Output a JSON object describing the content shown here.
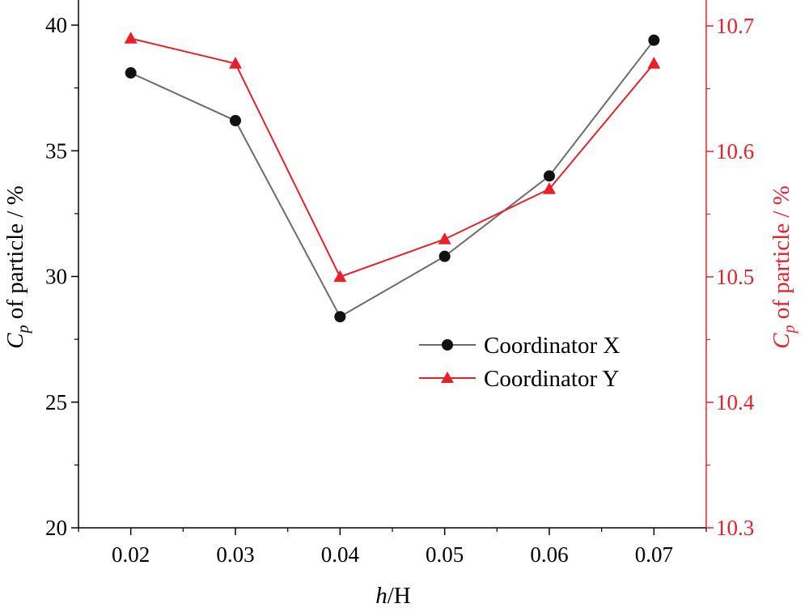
{
  "chart_data": {
    "type": "line",
    "x": [
      0.02,
      0.03,
      0.04,
      0.05,
      0.06,
      0.07
    ],
    "x_tick_labels": [
      "0.02",
      "0.03",
      "0.04",
      "0.05",
      "0.06",
      "0.07"
    ],
    "xlim": [
      0.015,
      0.075
    ],
    "xlabel": {
      "italic": "h",
      "rest": "/H"
    },
    "y_left": {
      "ylim": [
        20,
        41
      ],
      "ticks": [
        20,
        25,
        30,
        35,
        40
      ],
      "tick_labels": [
        "20",
        "25",
        "30",
        "35",
        "40"
      ],
      "label": {
        "italic": "C",
        "sub": "p",
        "rest": " of particle / %"
      }
    },
    "y_right": {
      "ylim": [
        10.3,
        10.7
      ],
      "ticks": [
        10.3,
        10.4,
        10.5,
        10.6,
        10.7
      ],
      "tick_labels": [
        "10.3",
        "10.4",
        "10.5",
        "10.6",
        "10.7"
      ],
      "label": {
        "italic": "C",
        "sub": "p",
        "rest": " of particle / %"
      }
    },
    "series": [
      {
        "name": "Coordinator X",
        "axis": "left",
        "marker": "circle",
        "color": "#6b6b6b",
        "marker_color": "#111111",
        "values": [
          38.1,
          36.2,
          28.4,
          30.8,
          34.0,
          39.4
        ]
      },
      {
        "name": "Coordinator Y",
        "axis": "right",
        "marker": "triangle",
        "color": "#e8202a",
        "marker_color": "#e8202a",
        "values": [
          10.69,
          10.67,
          10.5,
          10.53,
          10.57,
          10.67
        ]
      }
    ],
    "legend_position": "center-right",
    "colors": {
      "left_axis": "#000000",
      "right_axis": "#e8202a"
    }
  }
}
